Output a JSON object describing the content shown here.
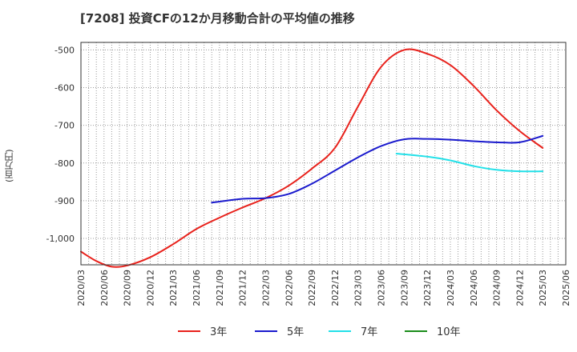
{
  "chart_data": {
    "type": "line",
    "title": "[7208]  投資CFの12か月移動合計の平均値の推移",
    "ylabel": "(百万円)",
    "xlabel": "",
    "ylim": [
      -1070,
      -480
    ],
    "yticks": [
      -500,
      -600,
      -700,
      -800,
      -900,
      -1000
    ],
    "ytick_labels": [
      "-500",
      "-600",
      "-700",
      "-800",
      "-900",
      "-1,000"
    ],
    "xticks": [
      "2020/03",
      "2020/06",
      "2020/09",
      "2020/12",
      "2021/03",
      "2021/06",
      "2021/09",
      "2021/12",
      "2022/03",
      "2022/06",
      "2022/09",
      "2022/12",
      "2023/03",
      "2023/06",
      "2023/09",
      "2023/12",
      "2024/03",
      "2024/06",
      "2024/09",
      "2024/12",
      "2025/03",
      "2025/06"
    ],
    "grid": true,
    "legend_position": "bottom",
    "series": [
      {
        "name": "3年",
        "color": "#e8211b",
        "points": [
          [
            "2020/03",
            -1035
          ],
          [
            "2020/05",
            -1060
          ],
          [
            "2020/07",
            -1075
          ],
          [
            "2020/09",
            -1072
          ],
          [
            "2020/12",
            -1050
          ],
          [
            "2021/03",
            -1015
          ],
          [
            "2021/06",
            -975
          ],
          [
            "2021/09",
            -945
          ],
          [
            "2021/12",
            -918
          ],
          [
            "2022/03",
            -893
          ],
          [
            "2022/06",
            -860
          ],
          [
            "2022/09",
            -815
          ],
          [
            "2022/12",
            -760
          ],
          [
            "2023/03",
            -650
          ],
          [
            "2023/06",
            -545
          ],
          [
            "2023/09",
            -500
          ],
          [
            "2023/12",
            -510
          ],
          [
            "2024/03",
            -540
          ],
          [
            "2024/06",
            -595
          ],
          [
            "2024/09",
            -660
          ],
          [
            "2024/12",
            -715
          ],
          [
            "2025/03",
            -760
          ]
        ]
      },
      {
        "name": "5年",
        "color": "#1a1acd",
        "points": [
          [
            "2021/08",
            -905
          ],
          [
            "2021/12",
            -895
          ],
          [
            "2022/03",
            -893
          ],
          [
            "2022/06",
            -882
          ],
          [
            "2022/09",
            -855
          ],
          [
            "2022/12",
            -820
          ],
          [
            "2023/03",
            -785
          ],
          [
            "2023/06",
            -755
          ],
          [
            "2023/09",
            -737
          ],
          [
            "2023/12",
            -736
          ],
          [
            "2024/03",
            -738
          ],
          [
            "2024/06",
            -742
          ],
          [
            "2024/09",
            -745
          ],
          [
            "2024/12",
            -745
          ],
          [
            "2025/03",
            -728
          ]
        ]
      },
      {
        "name": "7年",
        "color": "#22e0e8",
        "points": [
          [
            "2023/08",
            -775
          ],
          [
            "2023/12",
            -783
          ],
          [
            "2024/03",
            -793
          ],
          [
            "2024/06",
            -808
          ],
          [
            "2024/09",
            -818
          ],
          [
            "2024/12",
            -822
          ],
          [
            "2025/03",
            -822
          ]
        ]
      },
      {
        "name": "10年",
        "color": "#1a8c1a",
        "points": []
      }
    ]
  }
}
